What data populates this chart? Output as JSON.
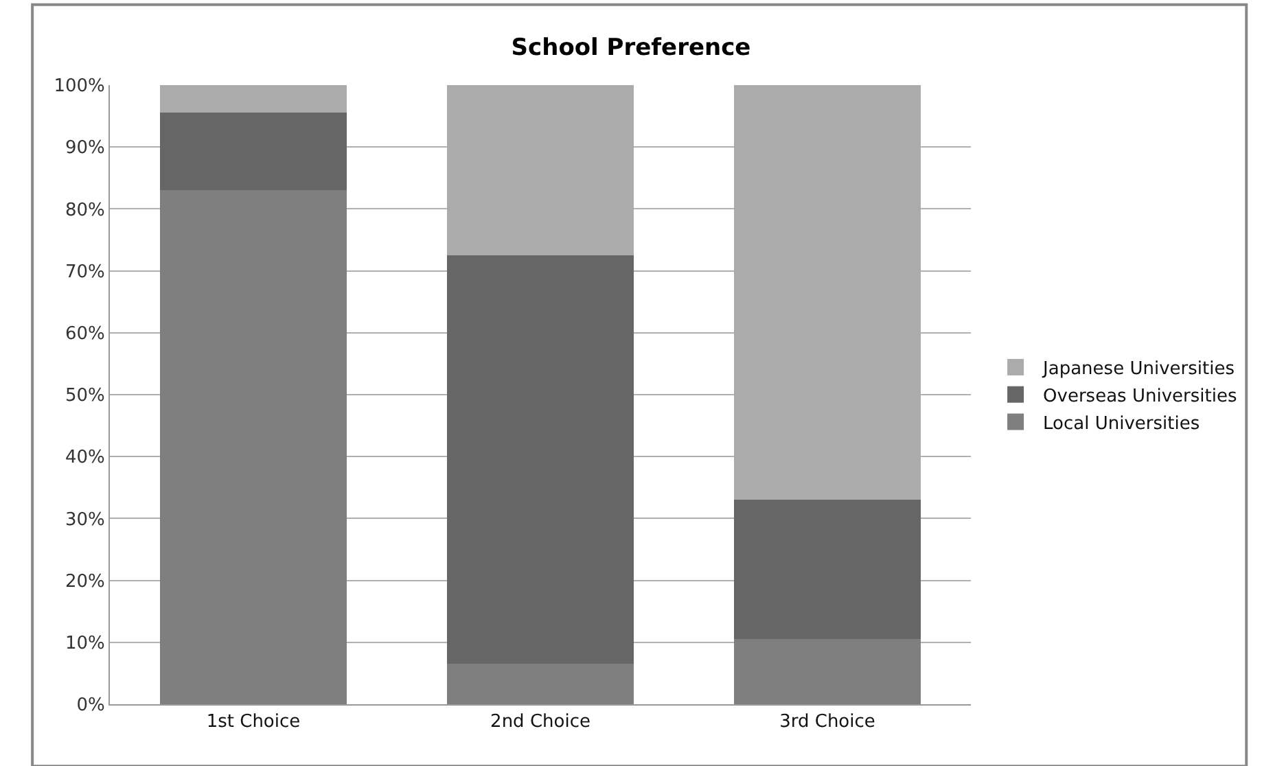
{
  "chart_data": {
    "type": "bar",
    "title": "School Preference",
    "stacked": true,
    "categories": [
      "1st Choice",
      "2nd Choice",
      "3rd Choice"
    ],
    "series": [
      {
        "name": "Local Universities",
        "color": "#7f7f7f",
        "values": [
          83,
          6.5,
          10.5
        ]
      },
      {
        "name": "Overseas Universities",
        "color": "#666666",
        "values": [
          12.6,
          66,
          22.5
        ]
      },
      {
        "name": "Japanese Universities",
        "color": "#ababab",
        "values": [
          4.4,
          27.5,
          67
        ]
      }
    ],
    "ylim": [
      0,
      100
    ],
    "yticks": [
      {
        "value": 0,
        "label": "0%"
      },
      {
        "value": 10,
        "label": "10%"
      },
      {
        "value": 20,
        "label": "20%"
      },
      {
        "value": 30,
        "label": "30%"
      },
      {
        "value": 40,
        "label": "40%"
      },
      {
        "value": 50,
        "label": "50%"
      },
      {
        "value": 60,
        "label": "60%"
      },
      {
        "value": 70,
        "label": "70%"
      },
      {
        "value": 80,
        "label": "80%"
      },
      {
        "value": 90,
        "label": "90%"
      },
      {
        "value": 100,
        "label": "100%"
      }
    ],
    "grid": "y",
    "legend": "right"
  }
}
